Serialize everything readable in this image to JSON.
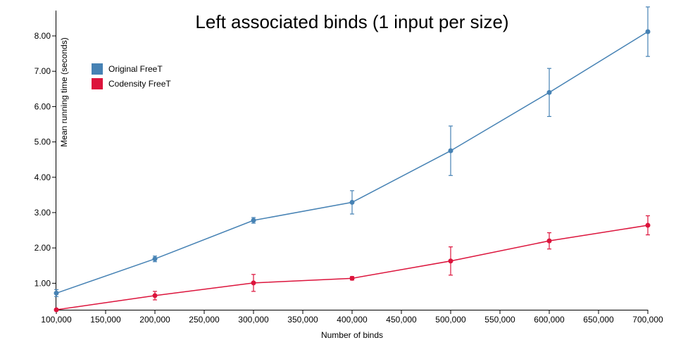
{
  "chart_data": {
    "type": "line",
    "title": "Left associated binds (1 input per size)",
    "xlabel": "Number of binds",
    "ylabel": "Mean running time (seconds)",
    "xlim": [
      100000,
      700000
    ],
    "ylim": [
      0.25,
      8.1
    ],
    "x_ticks": [
      100000,
      150000,
      200000,
      250000,
      300000,
      350000,
      400000,
      450000,
      500000,
      550000,
      600000,
      650000,
      700000
    ],
    "x_tick_labels": [
      "100,000",
      "150,000",
      "200,000",
      "250,000",
      "300,000",
      "350,000",
      "400,000",
      "450,000",
      "500,000",
      "550,000",
      "600,000",
      "650,000",
      "700,000"
    ],
    "y_ticks": [
      1,
      2,
      3,
      4,
      5,
      6,
      7,
      8
    ],
    "y_tick_labels": [
      "1.00",
      "2.00",
      "3.00",
      "4.00",
      "5.00",
      "6.00",
      "7.00",
      "8.00"
    ],
    "legend_position": "top-left",
    "grid": false,
    "x": [
      100000,
      200000,
      300000,
      400000,
      500000,
      600000,
      700000
    ],
    "series": [
      {
        "name": "Original FreeT",
        "color": "#4682b4",
        "values": [
          0.72,
          1.69,
          2.78,
          3.29,
          4.75,
          6.4,
          8.12
        ],
        "err_low": [
          0.62,
          1.61,
          2.7,
          2.96,
          4.05,
          5.72,
          7.42
        ],
        "err_high": [
          0.82,
          1.77,
          2.86,
          3.62,
          5.45,
          7.08,
          8.82
        ]
      },
      {
        "name": "Codensity FreeT",
        "color": "#dc143c",
        "values": [
          0.25,
          0.65,
          1.01,
          1.14,
          1.63,
          2.2,
          2.64
        ],
        "err_low": [
          0.25,
          0.53,
          0.77,
          1.09,
          1.23,
          1.97,
          2.37
        ],
        "err_high": [
          0.25,
          0.77,
          1.25,
          1.19,
          2.03,
          2.43,
          2.91
        ]
      }
    ]
  }
}
